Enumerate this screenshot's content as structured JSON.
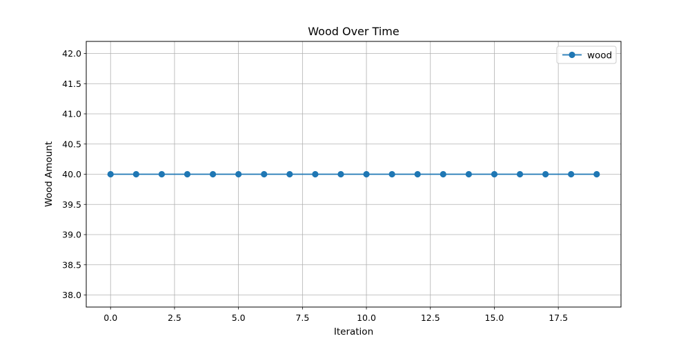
{
  "chart_data": {
    "type": "line",
    "title": "Wood Over Time",
    "xlabel": "Iteration",
    "ylabel": "Wood Amount",
    "x": [
      0,
      1,
      2,
      3,
      4,
      5,
      6,
      7,
      8,
      9,
      10,
      11,
      12,
      13,
      14,
      15,
      16,
      17,
      18,
      19
    ],
    "series": [
      {
        "name": "wood",
        "values": [
          40,
          40,
          40,
          40,
          40,
          40,
          40,
          40,
          40,
          40,
          40,
          40,
          40,
          40,
          40,
          40,
          40,
          40,
          40,
          40
        ],
        "color": "#1f77b4",
        "marker": "circle"
      }
    ],
    "xlim": [
      -0.95,
      19.95
    ],
    "ylim": [
      37.8,
      42.2
    ],
    "xticks": [
      0.0,
      2.5,
      5.0,
      7.5,
      10.0,
      12.5,
      15.0,
      17.5
    ],
    "xtick_labels": [
      "0.0",
      "2.5",
      "5.0",
      "7.5",
      "10.0",
      "12.5",
      "15.0",
      "17.5"
    ],
    "yticks": [
      38.0,
      38.5,
      39.0,
      39.5,
      40.0,
      40.5,
      41.0,
      41.5,
      42.0
    ],
    "ytick_labels": [
      "38.0",
      "38.5",
      "39.0",
      "39.5",
      "40.0",
      "40.5",
      "41.0",
      "41.5",
      "42.0"
    ],
    "grid": true,
    "legend_position": "top-right"
  }
}
